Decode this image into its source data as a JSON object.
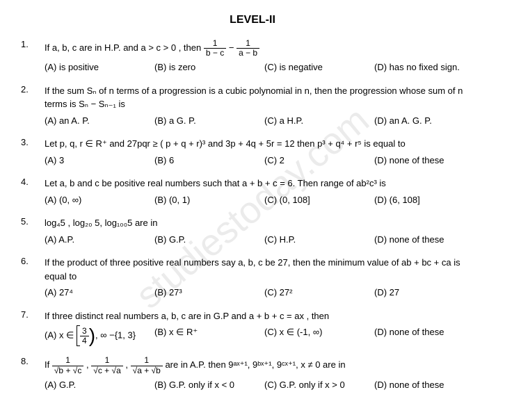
{
  "title": "LEVEL-II",
  "watermark": "studiestoday.com",
  "questions": [
    {
      "num": "1.",
      "text_pre": "If  a, b, c  are  in H.P. and  a > c > 0 ,  then  ",
      "frac1_num": "1",
      "frac1_den": "b − c",
      "mid": " − ",
      "frac2_num": "1",
      "frac2_den": "a − b",
      "opts": [
        "(A)  is  positive",
        "(B) is zero",
        "(C)  is negative",
        "(D)  has no  fixed sign."
      ]
    },
    {
      "num": "2.",
      "text": "If the sum Sₙ of n terms of a progression is a cubic polynomial in  n, then the  progression whose  sum of  n  terms  is  Sₙ − Sₙ₋₁  is",
      "opts": [
        "(A)  an A. P.",
        "(B)  a G. P.",
        "(C)  a H.P.",
        "(D) an A. G. P."
      ]
    },
    {
      "num": "3.",
      "text": "Let  p, q, r ∈ R⁺  and  27pqr ≥ ( p + q + r)³  and 3p + 4q + 5r = 12  then p³ + q⁴ + r⁵ is equal to",
      "opts": [
        "(A) 3",
        "(B) 6",
        "(C) 2",
        "(D) none of these"
      ]
    },
    {
      "num": "4.",
      "text": "Let a, b and c be positive real numbers such that  a + b + c = 6. Then range of ab²c³ is",
      "opts": [
        "(A) (0, ∞)",
        "(B) (0, 1)",
        "(C) (0, 108]",
        "(D) (6, 108]"
      ]
    },
    {
      "num": "5.",
      "text": "log₄5 ,  log₂₀ 5,  log₁₀₀5 are in",
      "opts": [
        "(A) A.P.",
        "(B) G.P.",
        "(C) H.P.",
        "(D) none of these"
      ]
    },
    {
      "num": "6.",
      "text": "If the product of three positive real numbers say a, b, c  be  27, then the minimum value  of ab + bc + ca  is  equal  to",
      "opts": [
        "(A) 27⁴",
        "(B) 27³",
        "(C) 27²",
        "(D) 27"
      ]
    },
    {
      "num": "7.",
      "text": "If three distinct real numbers a, b, c are  in G.P and a + b + c = ax , then",
      "optA_pre": "(A)  x ∈ ",
      "optA_frac_num": "3",
      "optA_frac_den": "4",
      "optA_post": ", ∞  −{1, 3}",
      "opts": [
        "",
        "(B) x ∈ R⁺",
        "(C) x ∈ (-1, ∞)",
        "(D) none of these"
      ]
    },
    {
      "num": "8.",
      "pre": "If  ",
      "f1n": "1",
      "f1d": "√b + √c",
      "m1": " ,  ",
      "f2n": "1",
      "f2d": "√c + √a",
      "m2": " ,  ",
      "f3n": "1",
      "f3d": "√a + √b",
      "post": "  are in A.P. then  9ᵃˣ⁺¹,  9ᵇˣ⁺¹,  9ᶜˣ⁺¹,  x ≠ 0 are in",
      "opts": [
        "(A) G.P.",
        "(B) G.P. only if x < 0",
        "(C) G.P. only if x > 0",
        "(D) none of these"
      ]
    }
  ]
}
